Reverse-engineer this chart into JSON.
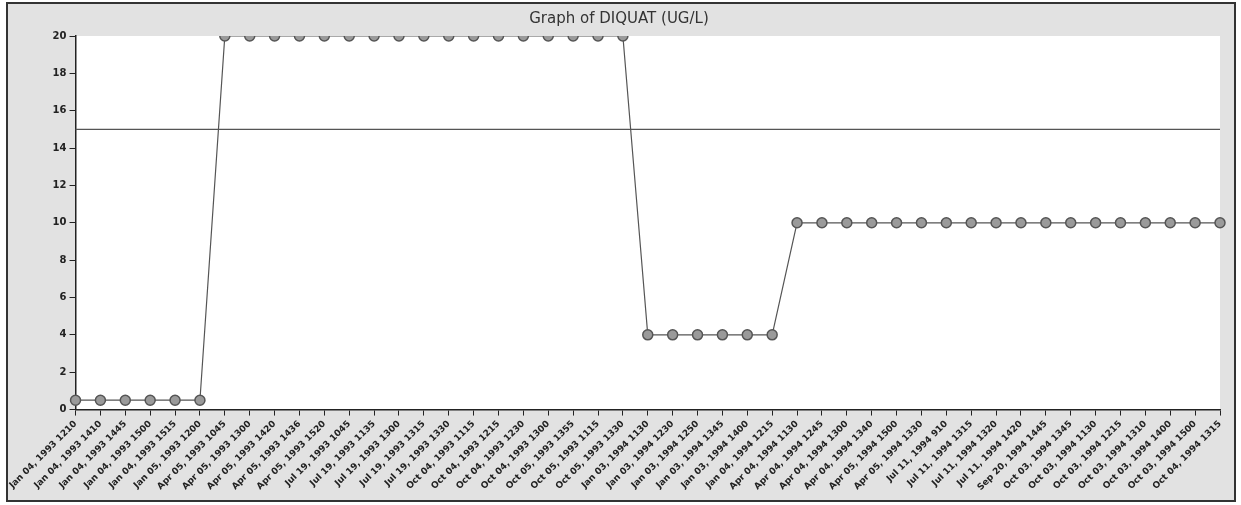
{
  "chart_data": {
    "type": "line",
    "title": "Graph of DIQUAT (UG/L)",
    "categories": [
      "Jan 04, 1993 1210",
      "Jan 04, 1993 1410",
      "Jan 04, 1993 1445",
      "Jan 04, 1993 1500",
      "Jan 04, 1993 1515",
      "Jan 05, 1993 1200",
      "Apr 05, 1993 1045",
      "Apr 05, 1993 1300",
      "Apr 05, 1993 1420",
      "Apr 05, 1993 1436",
      "Apr 05, 1993 1520",
      "Jul 19, 1993 1045",
      "Jul 19, 1993 1135",
      "Jul 19, 1993 1300",
      "Jul 19, 1993 1315",
      "Jul 19, 1993 1330",
      "Oct 04, 1993 1115",
      "Oct 04, 1993 1215",
      "Oct 04, 1993 1230",
      "Oct 04, 1993 1300",
      "Oct 05, 1993 1355",
      "Oct 05, 1993 1115",
      "Oct 05, 1993 1330",
      "Jan 03, 1994 1130",
      "Jan 03, 1994 1230",
      "Jan 03, 1994 1250",
      "Jan 03, 1994 1345",
      "Jan 03, 1994 1400",
      "Jan 04, 1994 1215",
      "Apr 04, 1994 1130",
      "Apr 04, 1994 1245",
      "Apr 04, 1994 1300",
      "Apr 04, 1994 1340",
      "Apr 05, 1994 1500",
      "Apr 05, 1994 1330",
      "Jul 11, 1994 910",
      "Jul 11, 1994 1315",
      "Jul 11, 1994 1320",
      "Jul 11, 1994 1420",
      "Sep 20, 1994 1445",
      "Oct 03, 1994 1345",
      "Oct 03, 1994 1130",
      "Oct 03, 1994 1215",
      "Oct 03, 1994 1310",
      "Oct 03, 1994 1400",
      "Oct 03, 1994 1500",
      "Oct 04, 1994 1315"
    ],
    "series": [
      {
        "color": "#555555",
        "values": [
          0.5,
          0.5,
          0.5,
          0.5,
          0.5,
          0.5,
          20,
          20,
          20,
          20,
          20,
          20,
          20,
          20,
          20,
          20,
          20,
          20,
          20,
          20,
          20,
          20,
          20,
          4,
          4,
          4,
          4,
          4,
          4,
          10,
          10,
          10,
          10,
          10,
          10,
          10,
          10,
          10,
          10,
          10,
          10,
          10,
          10,
          10,
          10,
          10,
          10
        ]
      }
    ],
    "ylim": [
      0,
      20
    ],
    "yticks": [
      0,
      2,
      4,
      6,
      8,
      10,
      12,
      14,
      16,
      18,
      20
    ],
    "ref_lines": [
      {
        "axis": "y",
        "value": 15,
        "color": "#555555"
      }
    ],
    "grid": false,
    "legend": false,
    "marker": "circle",
    "line_style": "solid"
  }
}
